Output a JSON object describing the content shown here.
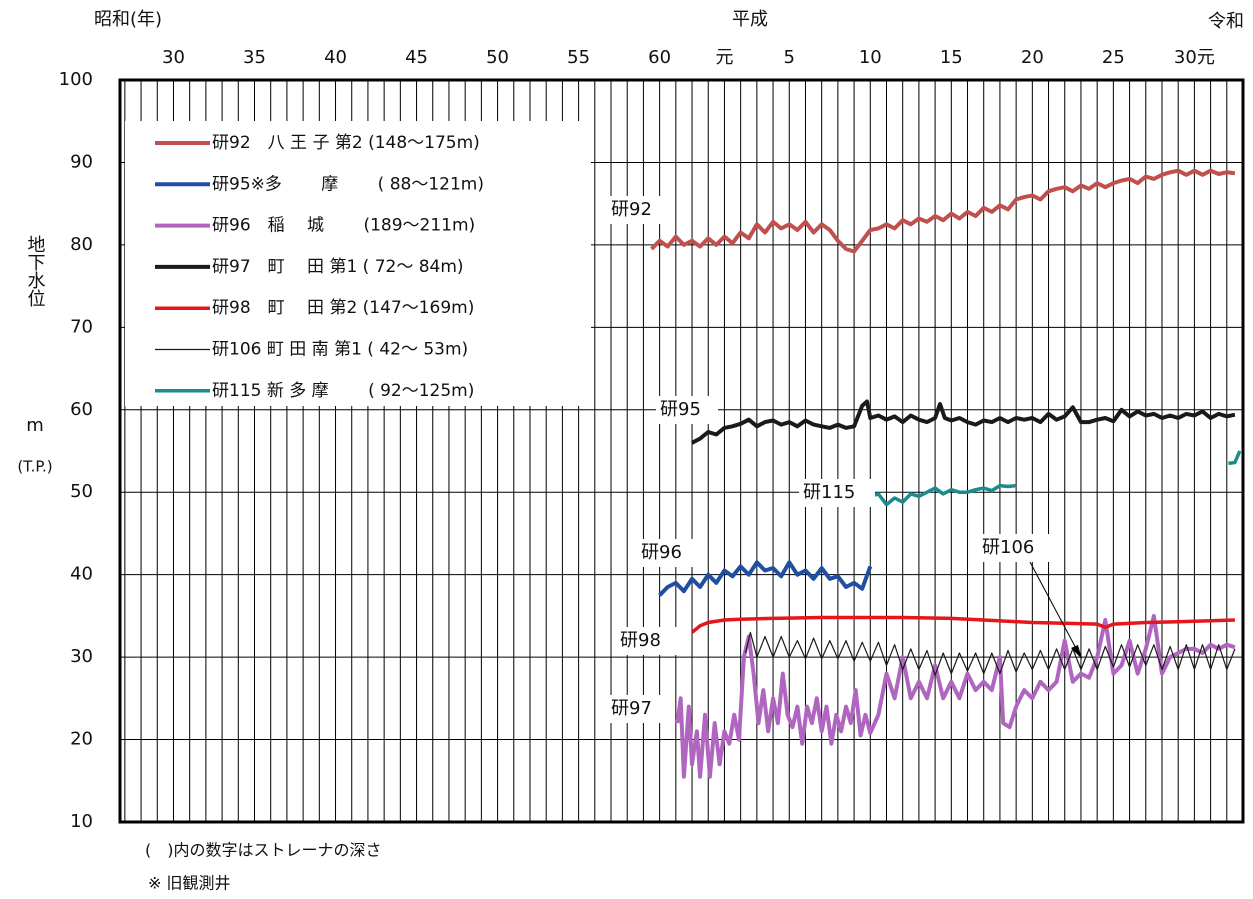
{
  "chart_data": {
    "type": "line",
    "era_labels": [
      "昭和(年)",
      "平成",
      "令和"
    ],
    "y_label": "地下水位",
    "y_unit": "m",
    "y_datum": "(T.P.)",
    "notes": [
      "(　)内の数字はストレーナの深さ",
      "※ 旧観測井"
    ],
    "xlim": [
      1951.7,
      2021
    ],
    "ylim": [
      10,
      100
    ],
    "yticks": [
      10,
      20,
      30,
      40,
      50,
      60,
      70,
      80,
      90,
      100
    ],
    "xticks": [
      {
        "value": 1952,
        "label": null
      },
      {
        "value": 1953,
        "label": null
      },
      {
        "value": 1954,
        "label": null
      },
      {
        "value": 1955,
        "label": "30"
      },
      {
        "value": 1956,
        "label": null
      },
      {
        "value": 1957,
        "label": null
      },
      {
        "value": 1958,
        "label": null
      },
      {
        "value": 1959,
        "label": null
      },
      {
        "value": 1960,
        "label": "35"
      },
      {
        "value": 1961,
        "label": null
      },
      {
        "value": 1962,
        "label": null
      },
      {
        "value": 1963,
        "label": null
      },
      {
        "value": 1964,
        "label": null
      },
      {
        "value": 1965,
        "label": "40"
      },
      {
        "value": 1966,
        "label": null
      },
      {
        "value": 1967,
        "label": null
      },
      {
        "value": 1968,
        "label": null
      },
      {
        "value": 1969,
        "label": null
      },
      {
        "value": 1970,
        "label": "45"
      },
      {
        "value": 1971,
        "label": null
      },
      {
        "value": 1972,
        "label": null
      },
      {
        "value": 1973,
        "label": null
      },
      {
        "value": 1974,
        "label": null
      },
      {
        "value": 1975,
        "label": "50"
      },
      {
        "value": 1976,
        "label": null
      },
      {
        "value": 1977,
        "label": null
      },
      {
        "value": 1978,
        "label": null
      },
      {
        "value": 1979,
        "label": null
      },
      {
        "value": 1980,
        "label": "55"
      },
      {
        "value": 1981,
        "label": null
      },
      {
        "value": 1982,
        "label": null
      },
      {
        "value": 1983,
        "label": null
      },
      {
        "value": 1984,
        "label": null
      },
      {
        "value": 1985,
        "label": "60"
      },
      {
        "value": 1986,
        "label": null
      },
      {
        "value": 1987,
        "label": null
      },
      {
        "value": 1988,
        "label": null
      },
      {
        "value": 1989,
        "label": "元"
      },
      {
        "value": 1990,
        "label": null
      },
      {
        "value": 1991,
        "label": null
      },
      {
        "value": 1992,
        "label": null
      },
      {
        "value": 1993,
        "label": "5"
      },
      {
        "value": 1994,
        "label": null
      },
      {
        "value": 1995,
        "label": null
      },
      {
        "value": 1996,
        "label": null
      },
      {
        "value": 1997,
        "label": null
      },
      {
        "value": 1998,
        "label": "10"
      },
      {
        "value": 1999,
        "label": null
      },
      {
        "value": 2000,
        "label": null
      },
      {
        "value": 2001,
        "label": null
      },
      {
        "value": 2002,
        "label": null
      },
      {
        "value": 2003,
        "label": "15"
      },
      {
        "value": 2004,
        "label": null
      },
      {
        "value": 2005,
        "label": null
      },
      {
        "value": 2006,
        "label": null
      },
      {
        "value": 2007,
        "label": null
      },
      {
        "value": 2008,
        "label": "20"
      },
      {
        "value": 2009,
        "label": null
      },
      {
        "value": 2010,
        "label": null
      },
      {
        "value": 2011,
        "label": null
      },
      {
        "value": 2012,
        "label": null
      },
      {
        "value": 2013,
        "label": "25"
      },
      {
        "value": 2014,
        "label": null
      },
      {
        "value": 2015,
        "label": null
      },
      {
        "value": 2016,
        "label": null
      },
      {
        "value": 2017,
        "label": null
      },
      {
        "value": 2018,
        "label": "30元"
      },
      {
        "value": 2019,
        "label": null
      },
      {
        "value": 2020,
        "label": null
      }
    ],
    "grid": true,
    "legend": "upper left",
    "series": [
      {
        "name": "研92　八 王 子 第2 (148～175m)",
        "label": "研92",
        "color": "#c0504d",
        "width": 4,
        "x": [
          1984.5,
          1985,
          1985.5,
          1986,
          1986.5,
          1987,
          1987.5,
          1988,
          1988.5,
          1989,
          1989.5,
          1990,
          1990.5,
          1991,
          1991.5,
          1992,
          1992.5,
          1993,
          1993.5,
          1994,
          1994.5,
          1995,
          1995.5,
          1996,
          1996.5,
          1997,
          1997.5,
          1998,
          1998.5,
          1999,
          1999.5,
          2000,
          2000.5,
          2001,
          2001.5,
          2002,
          2002.5,
          2003,
          2003.5,
          2004,
          2004.5,
          2005,
          2005.5,
          2006,
          2006.5,
          2007,
          2007.5,
          2008,
          2008.5,
          2009,
          2009.5,
          2010,
          2010.5,
          2011,
          2011.5,
          2012,
          2012.5,
          2013,
          2013.5,
          2014,
          2014.5,
          2015,
          2015.5,
          2016,
          2016.5,
          2017,
          2017.5,
          2018,
          2018.5,
          2019,
          2019.5,
          2020,
          2020.5
        ],
        "values": [
          79.5,
          80.5,
          79.8,
          81,
          80,
          80.5,
          79.8,
          80.8,
          80,
          81,
          80.2,
          81.5,
          80.8,
          82.5,
          81.5,
          82.8,
          82,
          82.5,
          81.8,
          82.8,
          81.5,
          82.5,
          81.8,
          80.5,
          79.5,
          79.2,
          80.5,
          81.8,
          82,
          82.5,
          82,
          83,
          82.5,
          83.2,
          82.8,
          83.5,
          83,
          83.8,
          83.2,
          84,
          83.5,
          84.5,
          84,
          84.8,
          84.3,
          85.5,
          85.8,
          86,
          85.5,
          86.5,
          86.8,
          87,
          86.5,
          87.2,
          86.8,
          87.5,
          87,
          87.5,
          87.8,
          88,
          87.5,
          88.3,
          88,
          88.5,
          88.8,
          89,
          88.5,
          89,
          88.5,
          89,
          88.6,
          88.8,
          88.7
        ]
      },
      {
        "name": "研95※多　　 摩　　 ( 88～121m)",
        "label": "研95",
        "color": "#1f4fa3",
        "width": 4,
        "x": [
          1985,
          1985.5,
          1986,
          1986.5,
          1987,
          1987.5,
          1988,
          1988.5,
          1989,
          1989.5,
          1990,
          1990.5,
          1991,
          1991.5,
          1992,
          1992.5,
          1993,
          1993.5,
          1994,
          1994.5,
          1995,
          1995.5,
          1996,
          1996.5,
          1997,
          1997.5,
          1998
        ],
        "values": [
          37.5,
          38.5,
          39,
          38,
          39.5,
          38.5,
          40,
          39,
          40.5,
          39.8,
          41,
          40,
          41.5,
          40.5,
          40.8,
          39.8,
          41.5,
          40,
          40.5,
          39.5,
          40.8,
          39.5,
          39.8,
          38.5,
          39,
          38.3,
          41
        ]
      },
      {
        "name": "研96　稲　 城　　 (189～211m)",
        "label": "研96",
        "color": "#b066c0",
        "width": 4,
        "x": [
          1986.1,
          1986.3,
          1986.5,
          1986.8,
          1987,
          1987.3,
          1987.5,
          1987.8,
          1988.1,
          1988.4,
          1988.7,
          1989,
          1989.3,
          1989.6,
          1989.9,
          1990.2,
          1990.5,
          1990.8,
          1991.1,
          1991.4,
          1991.7,
          1992,
          1992.3,
          1992.6,
          1992.9,
          1993.2,
          1993.5,
          1993.8,
          1994.1,
          1994.4,
          1994.7,
          1995,
          1995.3,
          1995.6,
          1995.9,
          1996.2,
          1996.5,
          1996.8,
          1997.1,
          1997.4,
          1997.7,
          1998,
          1998.5,
          1999,
          1999.5,
          2000,
          2000.5,
          2001,
          2001.5,
          2002,
          2002.5,
          2003,
          2003.5,
          2004,
          2004.5,
          2005,
          2005.5,
          2006,
          2006.2,
          2006.6,
          2007,
          2007.5,
          2008,
          2008.5,
          2009,
          2009.5,
          2010,
          2010.5,
          2011,
          2011.5,
          2012,
          2012.5,
          2013,
          2013.5,
          2014,
          2014.5,
          2015,
          2015.5,
          2016,
          2016.5,
          2017,
          2017.5,
          2018,
          2018.5,
          2019,
          2019.5,
          2020,
          2020.5
        ],
        "values": [
          22,
          25,
          15.5,
          24,
          17,
          21,
          15.5,
          23,
          15.5,
          22,
          17,
          21,
          19.5,
          23,
          20,
          30,
          32.5,
          28,
          22,
          26,
          21,
          25,
          22,
          28,
          23,
          21.5,
          24,
          19.5,
          24,
          22,
          25,
          21,
          24,
          19.5,
          23,
          21,
          24,
          22,
          26,
          20.5,
          23,
          20.8,
          23,
          28,
          25,
          30,
          25,
          27,
          25,
          29,
          25,
          27,
          25,
          28,
          26,
          27,
          26,
          30,
          22,
          21.5,
          24,
          26,
          25,
          27,
          26,
          27,
          32,
          27,
          28,
          27.5,
          30,
          34.5,
          28,
          29,
          32,
          28,
          31,
          35,
          28,
          30,
          30.5,
          31,
          31,
          30.5,
          31.5,
          31,
          31.5,
          31.2
        ]
      },
      {
        "name": "研97　町　 田 第1 ( 72～ 84m)",
        "label": "研97",
        "color": "#1a1a1a",
        "width": 4,
        "x": [
          1987,
          1987.5,
          1988,
          1988.5,
          1989,
          1989.5,
          1990,
          1990.5,
          1991,
          1991.5,
          1992,
          1992.5,
          1993,
          1993.5,
          1994,
          1994.5,
          1995,
          1995.5,
          1996,
          1996.5,
          1997,
          1997.5,
          1997.8,
          1998,
          1998.5,
          1999,
          1999.5,
          2000,
          2000.5,
          2001,
          2001.5,
          2002,
          2002.3,
          2002.6,
          2003,
          2003.5,
          2004,
          2004.5,
          2005,
          2005.5,
          2006,
          2006.5,
          2007,
          2007.5,
          2008,
          2008.5,
          2009,
          2009.5,
          2010,
          2010.5,
          2011,
          2011.5,
          2012,
          2012.5,
          2013,
          2013.5,
          2014,
          2014.5,
          2015,
          2015.5,
          2016,
          2016.5,
          2017,
          2017.5,
          2018,
          2018.5,
          2019,
          2019.5,
          2020,
          2020.5
        ],
        "values": [
          56,
          56.5,
          57.3,
          57,
          57.8,
          58,
          58.3,
          58.8,
          58,
          58.5,
          58.7,
          58.2,
          58.5,
          58,
          58.7,
          58.2,
          58,
          57.8,
          58.2,
          57.8,
          58,
          60.5,
          61,
          59,
          59.3,
          58.8,
          59.2,
          58.5,
          59.3,
          58.8,
          58.5,
          59,
          60.7,
          59,
          58.7,
          59,
          58.5,
          58.2,
          58.7,
          58.5,
          59,
          58.5,
          59,
          58.8,
          59,
          58.5,
          59.5,
          58.8,
          59.2,
          60.3,
          58.5,
          58.5,
          58.8,
          59,
          58.6,
          60,
          59.2,
          59.8,
          59.3,
          59.5,
          59,
          59.3,
          59,
          59.5,
          59.3,
          59.8,
          59,
          59.5,
          59.2,
          59.4
        ]
      },
      {
        "name": "研98　町　 田 第2 (147～169m)",
        "label": "研98",
        "color": "#e3171c",
        "width": 3.5,
        "x": [
          1987,
          1987.5,
          1988,
          1989,
          1990,
          1992,
          1995,
          2000,
          2003,
          2005,
          2008,
          2010,
          2012,
          2012.5,
          2013,
          2015,
          2017,
          2019,
          2020.5
        ],
        "values": [
          33,
          33.8,
          34.2,
          34.5,
          34.6,
          34.7,
          34.8,
          34.8,
          34.7,
          34.5,
          34.2,
          34.1,
          34,
          33.6,
          34,
          34.2,
          34.3,
          34.4,
          34.5
        ]
      },
      {
        "name": "研106 町 田 南 第1 ( 42～ 53m)",
        "label": "研106",
        "color": "#1a1a1a",
        "width": 1.2,
        "x": [
          1990.3,
          1990.6,
          1991,
          1991.5,
          1992,
          1992.5,
          1993,
          1993.5,
          1994,
          1994.5,
          1995,
          1995.5,
          1996,
          1996.5,
          1997,
          1997.5,
          1998,
          1998.5,
          1999,
          1999.5,
          2000,
          2000.5,
          2001,
          2001.5,
          2002,
          2002.5,
          2003,
          2003.5,
          2004,
          2004.5,
          2005,
          2005.5,
          2006,
          2006.5,
          2007,
          2007.5,
          2008,
          2008.5,
          2009,
          2009.5,
          2010,
          2010.5,
          2011,
          2011.5,
          2012,
          2012.5,
          2013,
          2013.5,
          2014,
          2014.5,
          2015,
          2015.5,
          2016,
          2016.5,
          2017,
          2017.5,
          2018,
          2018.5,
          2019,
          2019.5,
          2020,
          2020.5
        ],
        "values": [
          30.5,
          33,
          30,
          32.5,
          30,
          32.5,
          30,
          32,
          29.8,
          32.3,
          29.8,
          32,
          29.8,
          32,
          29.5,
          31.8,
          29.5,
          31.8,
          29,
          31.5,
          28.5,
          31,
          28.5,
          30.8,
          27.8,
          30.5,
          28,
          30.5,
          28.3,
          30.5,
          28,
          30.5,
          28,
          30.8,
          28.2,
          30.5,
          28.5,
          30.8,
          28.5,
          31,
          28.5,
          31,
          28.5,
          31,
          28.5,
          31.3,
          28.8,
          31.5,
          28.8,
          31.5,
          29,
          31.5,
          28.5,
          31.3,
          28.5,
          31.5,
          28.5,
          31.5,
          28.5,
          31.5,
          28.5,
          31
        ]
      },
      {
        "name": "研115 新 多 摩　　 ( 92～125m)",
        "label": "研115",
        "color": "#1a8c8c",
        "width": 3.5,
        "x": [
          1998,
          1998.5,
          1999,
          1999.5,
          2000,
          2000.5,
          2001,
          2001.5,
          2002,
          2002.5,
          2003,
          2003.5,
          2004,
          2004.5,
          2005,
          2005.5,
          2006,
          2006.5,
          2007,
          2008,
          2020.1,
          2020.5,
          2020.8
        ],
        "values": [
          49.5,
          49.8,
          48.5,
          49.3,
          48.8,
          49.8,
          49.5,
          50,
          50.5,
          49.8,
          50.3,
          50,
          50,
          50.3,
          50.5,
          50.2,
          50.8,
          50.7,
          50.8,
          null,
          53.5,
          53.6,
          55
        ]
      }
    ]
  }
}
